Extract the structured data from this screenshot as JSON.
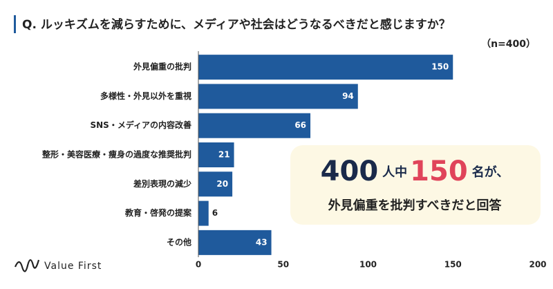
{
  "chart_data": {
    "type": "bar",
    "orientation": "horizontal",
    "title": "Q. ルッキズムを減らすために、メディアや社会はどうなるべきだと感じますか？",
    "subtitle": "（n=400）",
    "categories": [
      "外見偏重の批判",
      "多様性・外見以外を重視",
      "SNS・メディアの内容改善",
      "整形・美容医療・痩身の過度な推奨批判",
      "差別表現の減少",
      "教育・啓発の提案",
      "その他"
    ],
    "values": [
      150,
      94,
      66,
      21,
      20,
      6,
      43
    ],
    "color": "#1f5a9c",
    "xlim": [
      0,
      200
    ],
    "xticks": [
      0,
      50,
      100,
      150,
      200
    ],
    "grid": false,
    "callout": {
      "parts": [
        "400",
        "人中",
        "150",
        "名が、"
      ],
      "line2": "外見偏重を批判すべきだと回答"
    }
  },
  "logo": "Value First"
}
